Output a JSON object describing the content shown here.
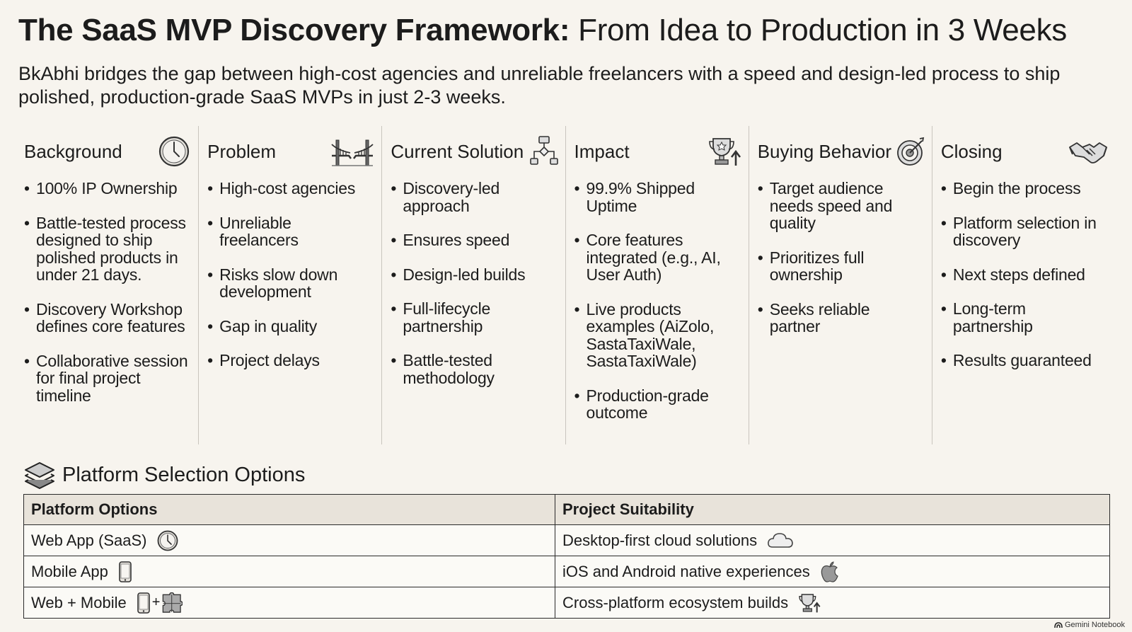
{
  "header": {
    "title_bold": "The SaaS MVP Discovery Framework:",
    "title_rest": "From Idea to Production in 3 Weeks",
    "subtitle": "BkAbhi bridges the gap between high-cost agencies and unreliable freelancers with a speed and design-led process to ship polished, production-grade SaaS MVPs in just 2-3 weeks."
  },
  "columns": [
    {
      "title": "Background",
      "icon": "clock-icon",
      "items": [
        "100% IP Ownership",
        "Battle-tested process designed to ship polished products in under 21 days.",
        "Discovery Workshop defines core features",
        "Collaborative session for final project timeline"
      ]
    },
    {
      "title": "Problem",
      "icon": "broken-bridge-icon",
      "items": [
        "High-cost agencies",
        "Unreliable freelancers",
        "Risks slow down development",
        "Gap in quality",
        "Project delays"
      ]
    },
    {
      "title": "Current Solution",
      "icon": "flowchart-icon",
      "items": [
        "Discovery-led approach",
        "Ensures speed",
        "Design-led builds",
        "Full-lifecycle partnership",
        "Battle-tested methodology"
      ]
    },
    {
      "title": "Impact",
      "icon": "trophy-arrow-icon",
      "items": [
        "99.9% Shipped Uptime",
        "Core features integrated (e.g., AI, User Auth)",
        "Live products examples (AiZolo, SastaTaxiWale, SastaTaxiWale)",
        "Production-grade outcome"
      ]
    },
    {
      "title": "Buying Behavior",
      "icon": "target-icon",
      "items": [
        "Target audience needs speed and quality",
        "Prioritizes full ownership",
        "Seeks reliable partner"
      ]
    },
    {
      "title": "Closing",
      "icon": "handshake-icon",
      "items": [
        "Begin the process",
        "Platform selection in discovery",
        "Next steps defined",
        "Long-term partnership",
        "Results guaranteed"
      ]
    }
  ],
  "platform": {
    "heading": "Platform Selection Options",
    "headers": [
      "Platform Options",
      "Project Suitability"
    ],
    "rows": [
      {
        "option": "Web App (SaaS)",
        "option_icon": "clock-icon",
        "suitability": "Desktop-first cloud solutions",
        "suitability_icon": "cloud-icon"
      },
      {
        "option": "Mobile App",
        "option_icon": "phone-icon",
        "suitability": "iOS and Android native experiences",
        "suitability_icon": "apple-icon"
      },
      {
        "option": "Web + Mobile",
        "option_icon": "phone-plus-puzzle-icon",
        "plus": "+",
        "suitability": "Cross-platform ecosystem builds",
        "suitability_icon": "trophy-arrow-icon"
      }
    ]
  },
  "footer": {
    "brand": "Gemini Notebook"
  }
}
